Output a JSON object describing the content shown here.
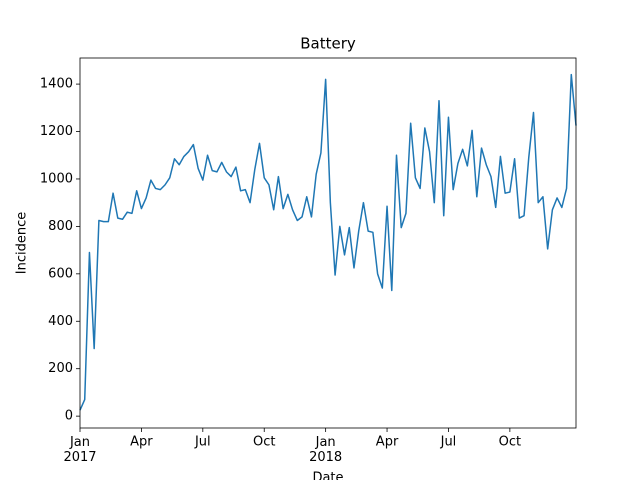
{
  "chart_data": {
    "type": "line",
    "title": "Battery",
    "xlabel": "Date",
    "ylabel": "Incidence",
    "categories": [
      "Jan\n2017",
      null,
      null,
      null,
      null,
      null,
      null,
      null,
      null,
      null,
      null,
      null,
      null,
      "Apr",
      null,
      null,
      null,
      null,
      null,
      null,
      null,
      null,
      null,
      null,
      null,
      null,
      "Jul",
      null,
      null,
      null,
      null,
      null,
      null,
      null,
      null,
      null,
      null,
      null,
      null,
      "Oct",
      null,
      null,
      null,
      null,
      null,
      null,
      null,
      null,
      null,
      null,
      null,
      null,
      "Jan\n2018",
      null,
      null,
      null,
      null,
      null,
      null,
      null,
      null,
      null,
      null,
      null,
      null,
      "Apr",
      null,
      null,
      null,
      null,
      null,
      null,
      null,
      null,
      null,
      null,
      null,
      null,
      "Jul",
      null,
      null,
      null,
      null,
      null,
      null,
      null,
      null,
      null,
      null,
      null,
      null,
      "Oct",
      null,
      null,
      null,
      null,
      null,
      null,
      null,
      null,
      null,
      null,
      null,
      null,
      null,
      null
    ],
    "values": [
      25,
      70,
      690,
      285,
      825,
      820,
      820,
      940,
      835,
      830,
      860,
      855,
      950,
      875,
      920,
      995,
      960,
      955,
      975,
      1005,
      1085,
      1060,
      1095,
      1115,
      1145,
      1045,
      995,
      1100,
      1035,
      1030,
      1070,
      1030,
      1010,
      1050,
      950,
      955,
      900,
      1040,
      1150,
      1005,
      975,
      870,
      1010,
      875,
      935,
      870,
      825,
      840,
      925,
      840,
      1020,
      1110,
      1420,
      900,
      595,
      800,
      680,
      795,
      625,
      780,
      900,
      780,
      775,
      600,
      540,
      885,
      530,
      1100,
      795,
      855,
      1235,
      1005,
      960,
      1215,
      1115,
      900,
      1330,
      845,
      1260,
      955,
      1065,
      1125,
      1055,
      1205,
      925,
      1130,
      1060,
      1010,
      880,
      1095,
      940,
      945,
      1085,
      835,
      845,
      1090,
      1280,
      900,
      925,
      705,
      870,
      920,
      880,
      960,
      1440,
      1225
    ],
    "color": "#1f77b4",
    "ylim": [
      -50,
      1510
    ],
    "yticks": [
      0,
      200,
      400,
      600,
      800,
      1000,
      1200,
      1400
    ]
  }
}
